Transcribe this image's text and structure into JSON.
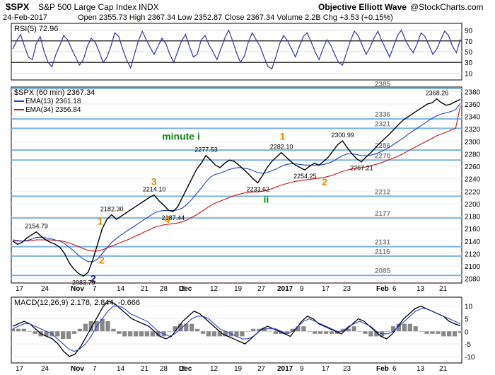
{
  "header": {
    "symbol": "$SPX",
    "name": "S&P 500 Large Cap Index",
    "exchange": "INDX",
    "source": "Objective Elliott Wave",
    "credit": "@StockCharts.com",
    "date": "24-Feb-2017",
    "ohlc_line": "Open 2355.73  High 2367.34  Low 2352.87  Close 2367.34  Volume 2.2B  Chg +3.53 (+0.15%)"
  },
  "colors": {
    "price": "#000000",
    "ema13": "#1f3fbf",
    "ema34": "#cc1111",
    "level": "#7fb2dc",
    "rsi": "#3333aa",
    "wave_orange": "#e08a00",
    "wave_green": "#118811",
    "wave_navy": "#1a237e"
  },
  "chart_data": [
    {
      "type": "line",
      "title": "RSI(5) 72.96",
      "ylim": [
        0,
        100
      ],
      "y_ticks": [
        10,
        30,
        50,
        70,
        90
      ],
      "levels": [
        30,
        70
      ],
      "series": [
        {
          "name": "RSI(5)",
          "values": [
            55,
            70,
            82,
            60,
            40,
            35,
            65,
            78,
            50,
            30,
            22,
            45,
            62,
            80,
            72,
            55,
            40,
            25,
            35,
            60,
            75,
            68,
            50,
            30,
            40,
            60,
            85,
            78,
            55,
            35,
            20,
            45,
            70,
            88,
            72,
            58,
            45,
            60,
            75,
            65,
            45,
            30,
            50,
            70,
            82,
            60,
            40,
            45,
            72,
            80,
            62,
            50,
            35,
            55,
            75,
            90,
            70,
            48,
            30,
            42,
            68,
            85,
            72,
            60,
            40,
            22,
            18,
            40,
            65,
            80,
            70,
            55,
            40,
            60,
            78,
            85,
            68,
            50,
            35,
            55,
            72,
            62,
            45,
            30,
            25,
            48,
            70,
            88,
            80,
            62,
            45,
            58,
            75,
            88,
            70,
            55,
            40,
            60,
            80,
            90,
            72,
            58,
            48,
            65,
            85,
            78,
            62,
            45,
            55,
            72,
            88,
            80,
            60,
            48,
            72.96
          ]
        }
      ]
    },
    {
      "type": "line",
      "title": "$SPX (60 min) 2367.34",
      "ylim": [
        2075,
        2385
      ],
      "y_ticks": [
        2080,
        2100,
        2120,
        2140,
        2160,
        2180,
        2200,
        2220,
        2240,
        2260,
        2280,
        2300,
        2320,
        2340,
        2360,
        2380
      ],
      "x_ticks": [
        "17",
        "24",
        "Nov",
        "7",
        "14",
        "21",
        "28",
        "Dec",
        "5",
        "12",
        "19",
        "27",
        "2017",
        "9",
        "17",
        "23",
        "Feb",
        "6",
        "13",
        "21"
      ],
      "series": [
        {
          "name": "$SPX",
          "values": [
            2140,
            2135,
            2138,
            2145,
            2150,
            2154.79,
            2148,
            2142,
            2138,
            2135,
            2130,
            2120,
            2105,
            2095,
            2088,
            2083.79,
            2090,
            2110,
            2135,
            2160,
            2175,
            2182.3,
            2175,
            2180,
            2185,
            2190,
            2195,
            2200,
            2205,
            2210,
            2214.1,
            2205,
            2198,
            2190,
            2187.44,
            2195,
            2210,
            2225,
            2240,
            2255,
            2265,
            2277.53,
            2270,
            2262,
            2258,
            2265,
            2270,
            2268,
            2262,
            2255,
            2248,
            2240,
            2233.62,
            2245,
            2258,
            2268,
            2275,
            2282.1,
            2275,
            2268,
            2262,
            2258,
            2254.25,
            2260,
            2265,
            2262,
            2268,
            2275,
            2285,
            2295,
            2300.99,
            2290,
            2280,
            2272,
            2267.21,
            2275,
            2282,
            2290,
            2298,
            2305,
            2312,
            2320,
            2328,
            2335,
            2340,
            2345,
            2350,
            2355,
            2360,
            2362,
            2368.26,
            2362,
            2358,
            2360,
            2364,
            2367.34
          ]
        },
        {
          "name": "EMA(13) 2361.18",
          "values": [
            2142,
            2141,
            2140,
            2141,
            2143,
            2146,
            2146,
            2145,
            2144,
            2142,
            2140,
            2136,
            2130,
            2124,
            2117,
            2111,
            2107,
            2107,
            2111,
            2120,
            2129,
            2138,
            2144,
            2150,
            2155,
            2160,
            2165,
            2170,
            2175,
            2180,
            2185,
            2188,
            2189,
            2189,
            2189,
            2190,
            2193,
            2199,
            2207,
            2216,
            2225,
            2235,
            2243,
            2247,
            2249,
            2252,
            2255,
            2257,
            2258,
            2257,
            2256,
            2253,
            2250,
            2249,
            2250,
            2253,
            2256,
            2260,
            2263,
            2264,
            2264,
            2263,
            2262,
            2262,
            2262,
            2262,
            2263,
            2265,
            2268,
            2273,
            2277,
            2280,
            2280,
            2279,
            2277,
            2277,
            2278,
            2280,
            2283,
            2287,
            2291,
            2296,
            2301,
            2306,
            2312,
            2317,
            2322,
            2327,
            2332,
            2337,
            2341,
            2344,
            2346,
            2348,
            2351,
            2361.18
          ]
        },
        {
          "name": "EMA(34) 2356.84",
          "values": [
            2140,
            2140,
            2140,
            2140,
            2141,
            2142,
            2142,
            2142,
            2142,
            2141,
            2141,
            2139,
            2137,
            2134,
            2131,
            2128,
            2125,
            2124,
            2124,
            2126,
            2129,
            2132,
            2135,
            2138,
            2141,
            2144,
            2148,
            2151,
            2155,
            2158,
            2162,
            2164,
            2166,
            2167,
            2168,
            2169,
            2171,
            2174,
            2178,
            2182,
            2187,
            2192,
            2197,
            2201,
            2204,
            2207,
            2210,
            2213,
            2215,
            2217,
            2218,
            2219,
            2219,
            2220,
            2222,
            2224,
            2227,
            2230,
            2232,
            2234,
            2236,
            2237,
            2238,
            2239,
            2240,
            2241,
            2242,
            2244,
            2246,
            2249,
            2252,
            2254,
            2256,
            2257,
            2258,
            2259,
            2261,
            2263,
            2265,
            2268,
            2271,
            2274,
            2277,
            2281,
            2285,
            2289,
            2293,
            2297,
            2301,
            2305,
            2309,
            2312,
            2315,
            2318,
            2321,
            2356.84
          ]
        }
      ],
      "levels": [
        2385,
        2336,
        2321,
        2286,
        2270,
        2212,
        2177,
        2131,
        2116,
        2085
      ],
      "price_labels": [
        "2154.79",
        "2182.30",
        "2083.79",
        "2214.10",
        "2187.44",
        "2277.53",
        "2233.62",
        "2282.10",
        "2254.25",
        "2300.99",
        "2267.21",
        "2368.26"
      ],
      "wave_labels": [
        {
          "text": "1",
          "color": "orange"
        },
        {
          "text": "2",
          "color": "orange"
        },
        {
          "text": "2",
          "color": "navy"
        },
        {
          "text": "3",
          "color": "orange"
        },
        {
          "text": "4",
          "color": "orange"
        },
        {
          "text": "minute i",
          "color": "green"
        },
        {
          "text": "ii",
          "color": "green"
        },
        {
          "text": "1",
          "color": "orange"
        },
        {
          "text": "2",
          "color": "orange"
        }
      ]
    },
    {
      "type": "line",
      "title": "MACD(12,26,9) 2.178, 2.844, -0.666",
      "ylim": [
        -12,
        13
      ],
      "y_ticks": [
        -10,
        -5,
        0,
        5,
        10
      ],
      "series": [
        {
          "name": "MACD",
          "values": [
            2,
            3,
            4,
            3,
            1,
            -1,
            -2,
            -3,
            -5,
            -8,
            -10,
            -9,
            -6,
            -2,
            2,
            6,
            10,
            12,
            11,
            9,
            7,
            5,
            4,
            3,
            2,
            0,
            -2,
            -3,
            -2,
            1,
            4,
            6,
            8,
            7,
            5,
            3,
            1,
            -1,
            -2,
            -3,
            -4,
            -5,
            -3,
            -1,
            1,
            2,
            1,
            0,
            -1,
            -2,
            1,
            4,
            6,
            5,
            3,
            2,
            1,
            0,
            -1,
            1,
            3,
            5,
            4,
            2,
            0,
            -2,
            -3,
            -1,
            2,
            5,
            7,
            9,
            10,
            9,
            8,
            7,
            6,
            4,
            3,
            2.178
          ]
        },
        {
          "name": "Signal",
          "values": [
            1,
            2,
            3,
            3,
            2,
            1,
            0,
            -1,
            -3,
            -5,
            -7,
            -8,
            -7,
            -5,
            -2,
            2,
            5,
            8,
            10,
            10,
            9,
            7,
            6,
            5,
            4,
            2,
            0,
            -1,
            -2,
            -1,
            1,
            3,
            5,
            6,
            6,
            5,
            3,
            1,
            0,
            -1,
            -2,
            -3,
            -3,
            -2,
            0,
            1,
            1,
            1,
            0,
            -1,
            0,
            2,
            4,
            5,
            4,
            3,
            2,
            1,
            0,
            0,
            2,
            3,
            4,
            3,
            2,
            0,
            -1,
            -1,
            0,
            2,
            4,
            6,
            8,
            9,
            9,
            8,
            7,
            6,
            5,
            4,
            2.844
          ]
        },
        {
          "name": "Histogram",
          "values": [
            1,
            1,
            1,
            0,
            -1,
            -2,
            -2,
            -2,
            -2,
            -3,
            -3,
            -1,
            1,
            3,
            4,
            4,
            5,
            4,
            1,
            -1,
            -2,
            -2,
            -2,
            -2,
            -2,
            -2,
            -2,
            -2,
            0,
            2,
            3,
            3,
            3,
            1,
            -1,
            -2,
            -2,
            -2,
            -2,
            -2,
            -2,
            -2,
            0,
            1,
            1,
            1,
            0,
            -1,
            -1,
            -1,
            1,
            2,
            2,
            0,
            -1,
            -1,
            -1,
            -1,
            -1,
            1,
            1,
            2,
            0,
            -1,
            -2,
            -2,
            -2,
            0,
            2,
            3,
            3,
            3,
            2,
            0,
            -1,
            -1,
            -1,
            -2,
            -2,
            -2,
            -0.666
          ]
        }
      ]
    }
  ]
}
